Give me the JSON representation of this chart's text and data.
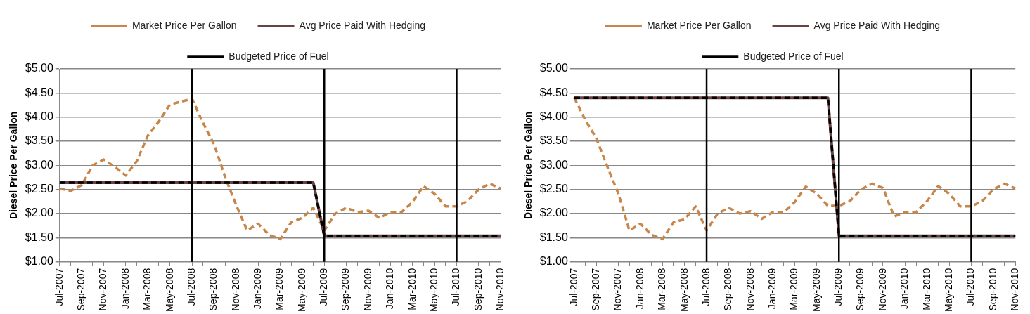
{
  "chart_data": [
    {
      "type": "line",
      "ylabel": "Diesel Price Per Gallon",
      "legend": "top",
      "grid": "y",
      "marker": "none",
      "categories": [
        "Jul-2007",
        null,
        "Sep-2007",
        null,
        "Nov-2007",
        null,
        "Jan-2008",
        null,
        "Mar-2008",
        null,
        "May-2008",
        null,
        "Jul-2008",
        null,
        "Sep-2008",
        null,
        "Nov-2008",
        null,
        "Jan-2009",
        null,
        "Mar-2009",
        null,
        "May-2009",
        null,
        "Jul-2009",
        null,
        "Sep-2009",
        null,
        "Nov-2009",
        null,
        "Jan-2010",
        null,
        "Mar-2010",
        null,
        "May-2010",
        null,
        "Jul-2010",
        null,
        "Sep-2010",
        null,
        "Nov-2010"
      ],
      "ylim": [
        1,
        5
      ],
      "yticks": [
        {
          "value": 1,
          "label": "$1.00"
        },
        {
          "value": 1.5,
          "label": "$1.50"
        },
        {
          "value": 2,
          "label": "$2.00"
        },
        {
          "value": 2.5,
          "label": "$2.50"
        },
        {
          "value": 3,
          "label": "$3.00"
        },
        {
          "value": 3.5,
          "label": "$3.50"
        },
        {
          "value": 4,
          "label": "$4.00"
        },
        {
          "value": 4.5,
          "label": "$4.50"
        },
        {
          "value": 5,
          "label": "$5.00"
        }
      ],
      "series": [
        {
          "name": "Market Price Per Gallon",
          "color": "#c8864a",
          "line_style": "dashed",
          "values": [
            2.52,
            2.47,
            2.59,
            3.0,
            3.12,
            2.97,
            2.79,
            3.09,
            3.62,
            3.91,
            4.26,
            4.32,
            4.38,
            3.88,
            3.44,
            2.76,
            2.18,
            1.65,
            1.79,
            1.56,
            1.47,
            1.82,
            1.91,
            2.12,
            1.65,
            2.0,
            2.12,
            2.03,
            2.06,
            1.91,
            2.03,
            2.03,
            2.24,
            2.57,
            2.41,
            2.15,
            2.15,
            2.26,
            2.5,
            2.62,
            2.52
          ]
        },
        {
          "name": "Avg Price Paid With Hedging",
          "color": "#6b4242",
          "line_style": "solid",
          "values": [
            2.64,
            2.64,
            2.64,
            2.64,
            2.64,
            2.64,
            2.64,
            2.64,
            2.64,
            2.64,
            2.64,
            2.64,
            2.64,
            2.64,
            2.64,
            2.64,
            2.64,
            2.64,
            2.64,
            2.64,
            2.64,
            2.64,
            2.64,
            2.64,
            1.54,
            1.54,
            1.54,
            1.54,
            1.54,
            1.54,
            1.54,
            1.54,
            1.54,
            1.54,
            1.54,
            1.54,
            1.54,
            1.54,
            1.54,
            1.54,
            1.54
          ]
        },
        {
          "name": "Budgeted Price of Fuel",
          "color": "#000000",
          "line_style": "dashed",
          "values": [
            2.64,
            2.64,
            2.64,
            2.64,
            2.64,
            2.64,
            2.64,
            2.64,
            2.64,
            2.64,
            2.64,
            2.64,
            2.64,
            2.64,
            2.64,
            2.64,
            2.64,
            2.64,
            2.64,
            2.64,
            2.64,
            2.64,
            2.64,
            2.64,
            1.54,
            1.54,
            1.54,
            1.54,
            1.54,
            1.54,
            1.54,
            1.54,
            1.54,
            1.54,
            1.54,
            1.54,
            1.54,
            1.54,
            1.54,
            1.54,
            1.54
          ]
        }
      ],
      "ref_lines": [
        {
          "axis": "x",
          "value": "Jul-2008",
          "color": "#000000"
        },
        {
          "axis": "x",
          "value": "Jul-2009",
          "color": "#000000"
        },
        {
          "axis": "x",
          "value": "Jul-2010",
          "color": "#000000"
        }
      ]
    },
    {
      "type": "line",
      "ylabel": "Diesel Price Per Gallon",
      "legend": "top",
      "grid": "y",
      "marker": "none",
      "categories": [
        "Jul-2007",
        null,
        "Sep-2007",
        null,
        "Nov-2007",
        null,
        "Jan-2008",
        null,
        "Mar-2008",
        null,
        "May-2008",
        null,
        "Jul-2008",
        null,
        "Sep-2008",
        null,
        "Nov-2008",
        null,
        "Jan-2009",
        null,
        "Mar-2009",
        null,
        "May-2009",
        null,
        "Jul-2009",
        null,
        "Sep-2009",
        null,
        "Nov-2009",
        null,
        "Jan-2010",
        null,
        "Mar-2010",
        null,
        "May-2010",
        null,
        "Jul-2010",
        null,
        "Sep-2010",
        null,
        "Nov-2010"
      ],
      "ylim": [
        1,
        5
      ],
      "yticks": [
        {
          "value": 1,
          "label": "$1.00"
        },
        {
          "value": 1.5,
          "label": "$1.50"
        },
        {
          "value": 2,
          "label": "$2.00"
        },
        {
          "value": 2.5,
          "label": "$2.50"
        },
        {
          "value": 3,
          "label": "$3.00"
        },
        {
          "value": 3.5,
          "label": "$3.50"
        },
        {
          "value": 4,
          "label": "$4.00"
        },
        {
          "value": 4.5,
          "label": "$4.50"
        },
        {
          "value": 5,
          "label": "$5.00"
        }
      ],
      "series": [
        {
          "name": "Market Price Per Gallon",
          "color": "#c8864a",
          "line_style": "dashed",
          "values": [
            4.4,
            3.94,
            3.56,
            2.97,
            2.41,
            1.65,
            1.79,
            1.56,
            1.47,
            1.82,
            1.88,
            2.15,
            1.65,
            2.0,
            2.12,
            2.0,
            2.05,
            1.89,
            2.03,
            2.03,
            2.24,
            2.56,
            2.41,
            2.16,
            2.16,
            2.26,
            2.5,
            2.62,
            2.53,
            1.94,
            2.03,
            2.03,
            2.26,
            2.57,
            2.41,
            2.15,
            2.15,
            2.26,
            2.5,
            2.62,
            2.52
          ]
        },
        {
          "name": "Avg Price Paid With Hedging",
          "color": "#6b4242",
          "line_style": "solid",
          "values": [
            4.4,
            4.4,
            4.4,
            4.4,
            4.4,
            4.4,
            4.4,
            4.4,
            4.4,
            4.4,
            4.4,
            4.4,
            4.4,
            4.4,
            4.4,
            4.4,
            4.4,
            4.4,
            4.4,
            4.4,
            4.4,
            4.4,
            4.4,
            4.4,
            1.54,
            1.54,
            1.54,
            1.54,
            1.54,
            1.54,
            1.54,
            1.54,
            1.54,
            1.54,
            1.54,
            1.54,
            1.54,
            1.54,
            1.54,
            1.54,
            1.54
          ]
        },
        {
          "name": "Budgeted Price of Fuel",
          "color": "#000000",
          "line_style": "dashed",
          "values": [
            4.4,
            4.4,
            4.4,
            4.4,
            4.4,
            4.4,
            4.4,
            4.4,
            4.4,
            4.4,
            4.4,
            4.4,
            4.4,
            4.4,
            4.4,
            4.4,
            4.4,
            4.4,
            4.4,
            4.4,
            4.4,
            4.4,
            4.4,
            4.4,
            1.54,
            1.54,
            1.54,
            1.54,
            1.54,
            1.54,
            1.54,
            1.54,
            1.54,
            1.54,
            1.54,
            1.54,
            1.54,
            1.54,
            1.54,
            1.54,
            1.54
          ]
        }
      ],
      "ref_lines": [
        {
          "axis": "x",
          "value": "Jul-2008",
          "color": "#000000"
        },
        {
          "axis": "x",
          "value": "Jul-2009",
          "color": "#000000"
        },
        {
          "axis": "x",
          "value": "Jul-2010",
          "color": "#000000"
        }
      ]
    }
  ]
}
